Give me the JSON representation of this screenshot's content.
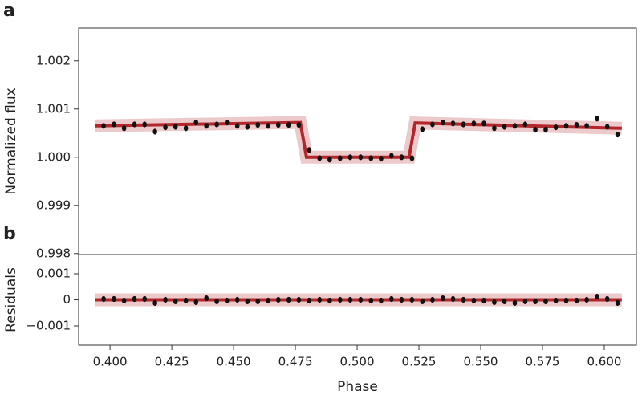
{
  "chart_data": [
    {
      "type": "scatter",
      "panel_label": "a",
      "ylabel": "Normalized flux",
      "xlim": [
        0.3873,
        0.613
      ],
      "ylim": [
        0.99798,
        1.00268
      ],
      "yticks": [
        0.998,
        0.999,
        {
          "value": 1,
          "label": "1.000"
        },
        1.001,
        1.002
      ],
      "series": [
        {
          "type": "line",
          "color": "#b3262b",
          "x": [
            0.3938,
            0.477,
            0.4795,
            0.521,
            0.5235,
            0.6071
          ],
          "values": [
            1.00065,
            1.00072,
            1.0,
            1.0,
            1.00071,
            1.0006
          ]
        },
        {
          "type": "scatter",
          "color": "#111111",
          "x": [
            0.3974,
            0.4016,
            0.4057,
            0.4099,
            0.414,
            0.4182,
            0.4224,
            0.4265,
            0.4307,
            0.4348,
            0.439,
            0.4432,
            0.4473,
            0.4515,
            0.4556,
            0.4598,
            0.464,
            0.4681,
            0.4723,
            0.4764,
            0.4806,
            0.4848,
            0.4889,
            0.4931,
            0.4972,
            0.5014,
            0.5056,
            0.5097,
            0.5139,
            0.518,
            0.5222,
            0.5264,
            0.5305,
            0.5347,
            0.5388,
            0.543,
            0.5472,
            0.5513,
            0.5555,
            0.5596,
            0.5638,
            0.568,
            0.5721,
            0.5763,
            0.5804,
            0.5846,
            0.5888,
            0.5929,
            0.5971,
            0.6012,
            0.6054
          ],
          "values": [
            1.00065,
            1.00068,
            1.0006,
            1.00068,
            1.00068,
            1.00053,
            1.00062,
            1.00063,
            1.0006,
            1.00072,
            1.00065,
            1.00068,
            1.00072,
            1.00065,
            1.00063,
            1.00067,
            1.00065,
            1.00067,
            1.00067,
            1.00067,
            1.00015,
            0.99998,
            0.99995,
            0.99998,
            1.0,
            1.0,
            0.99998,
            0.99997,
            1.00003,
            1.0,
            0.99998,
            1.00058,
            1.00068,
            1.00072,
            1.0007,
            1.00068,
            1.0007,
            1.0007,
            1.0006,
            1.00063,
            1.00065,
            1.00068,
            1.00057,
            1.00057,
            1.00062,
            1.00065,
            1.00067,
            1.00065,
            1.0008,
            1.00063,
            1.00047
          ]
        }
      ]
    },
    {
      "type": "scatter",
      "panel_label": "b",
      "ylabel": "Residuals",
      "xlabel": "Phase",
      "xlim": [
        0.3873,
        0.613
      ],
      "ylim": [
        -0.00174,
        0.00174
      ],
      "yticks": [
        {
          "value": -0.001,
          "label": "−0.001"
        },
        0,
        0.001
      ],
      "xticks": [
        {
          "value": 0.4,
          "label": "0.400"
        },
        0.425,
        {
          "value": 0.45,
          "label": "0.450"
        },
        0.475,
        {
          "value": 0.5,
          "label": "0.500"
        },
        0.525,
        {
          "value": 0.55,
          "label": "0.550"
        },
        0.575,
        {
          "value": 0.6,
          "label": "0.600"
        }
      ],
      "series": [
        {
          "type": "line",
          "color": "#b3262b",
          "x": [
            0.3938,
            0.6071
          ],
          "values": [
            0,
            0
          ]
        },
        {
          "type": "scatter",
          "color": "#111111",
          "x": [
            0.3974,
            0.4016,
            0.4057,
            0.4099,
            0.414,
            0.4182,
            0.4224,
            0.4265,
            0.4307,
            0.4348,
            0.439,
            0.4432,
            0.4473,
            0.4515,
            0.4556,
            0.4598,
            0.464,
            0.4681,
            0.4723,
            0.4764,
            0.4806,
            0.4848,
            0.4889,
            0.4931,
            0.4972,
            0.5014,
            0.5056,
            0.5097,
            0.5139,
            0.518,
            0.5222,
            0.5264,
            0.5305,
            0.5347,
            0.5388,
            0.543,
            0.5472,
            0.5513,
            0.5555,
            0.5596,
            0.5638,
            0.568,
            0.5721,
            0.5763,
            0.5804,
            0.5846,
            0.5888,
            0.5929,
            0.5971,
            0.6012,
            0.6054
          ],
          "values": [
            3e-05,
            3e-05,
            -3e-05,
            3e-05,
            3e-05,
            -0.00012,
            0,
            -6e-05,
            -3e-05,
            -9e-05,
            6e-05,
            -6e-05,
            -3e-05,
            0,
            -6e-05,
            -6e-05,
            -3e-05,
            0,
            0,
            0,
            -3e-05,
            0,
            -3e-05,
            0,
            0,
            0,
            -3e-05,
            -3e-05,
            3e-05,
            0,
            0,
            -6e-05,
            0,
            6e-05,
            3e-05,
            0,
            -3e-05,
            -3e-05,
            -9e-05,
            -6e-05,
            -0.00012,
            -6e-05,
            -6e-05,
            -6e-05,
            -3e-05,
            -3e-05,
            -3e-05,
            0,
            0.00012,
            3e-05,
            -0.00012
          ]
        }
      ]
    }
  ]
}
